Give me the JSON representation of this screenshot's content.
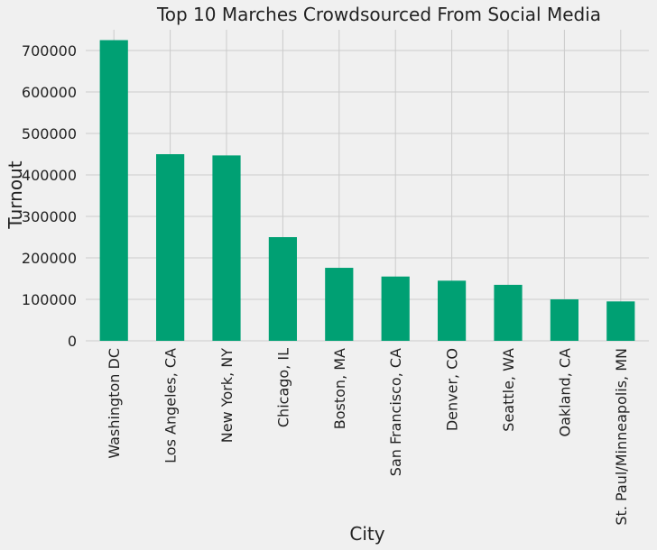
{
  "chart_data": {
    "type": "bar",
    "title": "Top 10 Marches Crowdsourced From Social Media",
    "xlabel": "City",
    "ylabel": "Turnout",
    "categories": [
      "Washington DC",
      "Los Angeles, CA",
      "New York, NY",
      "Chicago, IL",
      "Boston, MA",
      "San Francisco, CA",
      "Denver, CO",
      "Seattle, WA",
      "Oakland, CA",
      "St. Paul/Minneapolis, MN"
    ],
    "values": [
      725000,
      450000,
      447000,
      250000,
      176000,
      155000,
      145000,
      135000,
      100000,
      95000
    ],
    "ylim": [
      0,
      750000
    ],
    "yticks": [
      0,
      100000,
      200000,
      300000,
      400000,
      500000,
      600000,
      700000
    ],
    "ytick_labels": [
      "0",
      "100000",
      "200000",
      "300000",
      "400000",
      "500000",
      "600000",
      "700000"
    ],
    "bar_color": "#00a073",
    "grid": true
  }
}
